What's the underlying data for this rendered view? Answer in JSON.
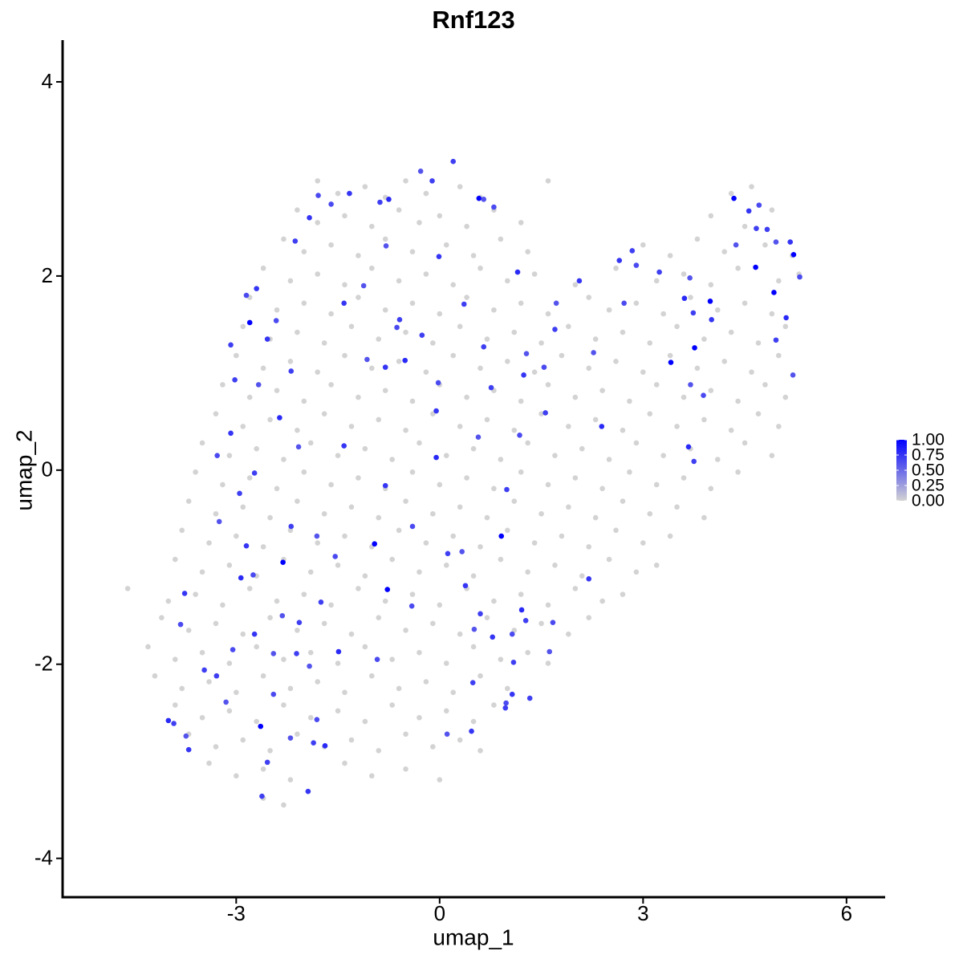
{
  "chart_data": {
    "type": "scatter",
    "title": "Rnf123",
    "xlabel": "umap_1",
    "ylabel": "umap_2",
    "xlim": [
      -5.56,
      6.57
    ],
    "ylim": [
      -4.4,
      4.43
    ],
    "xticks": [
      -3,
      0,
      3,
      6
    ],
    "yticks": [
      -4,
      -2,
      0,
      2,
      4
    ],
    "x": [
      -1.8,
      -1.5,
      -1.1,
      -0.8,
      -0.5,
      -0.2,
      0.3,
      0.6,
      1.6,
      4.3,
      4.6,
      -2.1,
      -1.8,
      -1.4,
      -1.0,
      -0.6,
      -0.3,
      0.0,
      0.4,
      0.8,
      1.2,
      4.0,
      4.5,
      4.9,
      -2.3,
      -2.0,
      -1.6,
      -1.2,
      -0.8,
      -0.4,
      0.1,
      0.5,
      0.9,
      1.3,
      3.0,
      3.4,
      3.8,
      4.2,
      4.8,
      5.2,
      -2.6,
      -2.2,
      -1.8,
      -1.4,
      -1.0,
      -0.6,
      -0.2,
      0.2,
      0.6,
      1.0,
      1.4,
      2.0,
      2.6,
      3.2,
      3.6,
      4.0,
      4.4,
      5.0,
      5.3,
      -2.8,
      -2.4,
      -2.0,
      -1.6,
      -1.2,
      -0.8,
      -0.4,
      0.0,
      0.4,
      0.8,
      1.2,
      1.6,
      2.2,
      2.5,
      2.9,
      3.3,
      3.7,
      4.1,
      4.5,
      4.9,
      -2.9,
      -2.5,
      -2.1,
      -1.7,
      -1.3,
      -0.9,
      -0.5,
      -0.1,
      0.3,
      0.7,
      1.1,
      1.5,
      1.9,
      2.3,
      2.7,
      3.1,
      3.5,
      3.9,
      4.3,
      4.7,
      5.1,
      -3.0,
      -2.6,
      -2.2,
      -1.8,
      -1.4,
      -1.0,
      -0.6,
      -0.2,
      0.2,
      0.6,
      1.0,
      1.4,
      1.8,
      2.2,
      2.6,
      3.0,
      3.4,
      3.8,
      4.2,
      4.6,
      5.0,
      -3.2,
      -2.8,
      -2.4,
      -2.0,
      -1.6,
      -1.2,
      -0.8,
      -0.4,
      0.0,
      0.4,
      0.8,
      1.2,
      1.6,
      2.0,
      2.4,
      2.8,
      3.2,
      3.6,
      4.0,
      4.4,
      4.8,
      5.1,
      -3.3,
      -2.9,
      -2.5,
      -2.1,
      -1.7,
      -1.3,
      -0.9,
      -0.5,
      -0.1,
      0.3,
      0.7,
      1.1,
      1.5,
      1.9,
      2.3,
      2.7,
      3.1,
      3.5,
      3.9,
      4.3,
      4.7,
      5.0,
      -3.5,
      -3.1,
      -2.7,
      -2.3,
      -1.9,
      -1.5,
      -1.1,
      -0.7,
      -0.3,
      0.1,
      0.5,
      0.9,
      1.3,
      1.7,
      2.1,
      2.5,
      2.9,
      3.3,
      3.7,
      4.1,
      4.5,
      4.9,
      -3.6,
      -3.2,
      -2.8,
      -2.4,
      -2.0,
      -1.6,
      -1.2,
      -0.8,
      -0.4,
      0.0,
      0.4,
      0.8,
      1.2,
      1.6,
      2.0,
      2.4,
      2.8,
      3.2,
      3.6,
      4.0,
      4.4,
      -3.7,
      -3.3,
      -2.9,
      -2.5,
      -2.1,
      -1.7,
      -1.3,
      -0.9,
      -0.5,
      -0.1,
      0.3,
      0.7,
      1.1,
      1.5,
      1.9,
      2.3,
      2.7,
      3.1,
      3.5,
      3.9,
      -3.8,
      -3.4,
      -3.0,
      -2.6,
      -2.2,
      -1.8,
      -1.4,
      -1.0,
      -0.6,
      -0.2,
      0.2,
      0.6,
      1.0,
      1.4,
      1.8,
      2.2,
      2.6,
      3.0,
      3.4,
      -3.9,
      -3.5,
      -3.1,
      -2.7,
      -2.3,
      -1.9,
      -1.5,
      -1.1,
      -0.7,
      -0.3,
      0.1,
      0.5,
      0.9,
      1.3,
      1.7,
      2.1,
      2.5,
      2.9,
      3.2,
      -4.6,
      -4.0,
      -3.6,
      -3.2,
      -2.8,
      -2.4,
      -2.0,
      -1.6,
      -1.2,
      -0.8,
      -0.4,
      0.0,
      0.4,
      0.8,
      1.2,
      1.6,
      2.0,
      2.4,
      2.7,
      -4.1,
      -3.7,
      -3.3,
      -2.9,
      -2.5,
      -2.1,
      -1.7,
      -1.3,
      -0.9,
      -0.5,
      -0.1,
      0.3,
      0.7,
      1.1,
      1.5,
      1.9,
      2.2,
      -4.3,
      -3.9,
      -3.5,
      -3.1,
      -2.7,
      -2.3,
      -1.9,
      -1.5,
      -1.1,
      -0.7,
      -0.3,
      0.1,
      0.5,
      0.9,
      1.3,
      1.6,
      -4.2,
      -3.8,
      -3.4,
      -3.0,
      -2.6,
      -2.2,
      -1.8,
      -1.4,
      -1.0,
      -0.6,
      -0.2,
      0.2,
      0.6,
      1.0,
      -3.9,
      -3.5,
      -3.1,
      -2.7,
      -2.3,
      -1.9,
      -1.5,
      -1.1,
      -0.7,
      -0.3,
      0.1,
      0.5,
      0.8,
      -3.7,
      -3.3,
      -2.9,
      -2.5,
      -2.1,
      -1.7,
      -1.3,
      -0.9,
      -0.5,
      -0.1,
      0.3,
      0.6,
      -3.4,
      -3.0,
      -2.6,
      -2.2,
      -1.4,
      -1.0,
      -0.5,
      0.0,
      -2.6,
      -2.3,
      0.58,
      -2.8,
      3.41,
      3.76,
      3.99,
      4.34,
      4.66,
      4.93,
      5.22,
      -0.96,
      0.91,
      -0.77,
      -2.31,
      -2.64,
      0.2,
      -0.28,
      -1.33,
      -1.79,
      -0.75,
      -0.11,
      0.65,
      -1.92,
      -1.6,
      -0.88,
      -2.13,
      -0.79,
      -0.01,
      0.8,
      1.15,
      0.36,
      -1.12,
      -1.41,
      -0.63,
      -0.26,
      -0.59,
      -1.07,
      -0.8,
      -0.02,
      -0.51,
      0.65,
      1.28,
      1.24,
      1.54,
      0.76,
      1.56,
      0.57,
      -0.05,
      1.18,
      2.39,
      1.7,
      1.72,
      2.06,
      2.72,
      2.84,
      3.24,
      3.69,
      4.01,
      3.89,
      3.67,
      3.75,
      4.37,
      4.56,
      4.71,
      4.67,
      4.83,
      4.96,
      5.17,
      5.31,
      5.11,
      4.96,
      5.21,
      -2.7,
      -2.85,
      -3.08,
      -3.02,
      -2.67,
      -2.54,
      -2.41,
      -2.36,
      -2.19,
      -2.08,
      -3.08,
      -3.28,
      -2.73,
      -2.95,
      -3.25,
      -2.85,
      -2.75,
      -2.93,
      -2.19,
      -1.81,
      -1.41,
      -1.54,
      -2.07,
      -1.75,
      -2.32,
      -0.8,
      -0.4,
      -0.05,
      0.12,
      0.33,
      0.38,
      -0.41,
      0.99,
      0.6,
      0.51,
      0.78,
      1.07,
      1.21,
      1.27,
      1.62,
      1.07,
      0.98,
      0.97,
      0.49,
      0.11,
      0.47,
      -0.92,
      -1.49,
      -2.11,
      -2.45,
      -2.73,
      -3.05,
      -3.47,
      -3.29,
      -3.15,
      -3.76,
      -3.82,
      -4.0,
      -3.92,
      -3.74,
      -3.7,
      -2.45,
      -2.54,
      -2.62,
      -2.2,
      -1.94,
      -1.81,
      -1.69,
      -1.86,
      -1.92,
      2.2,
      1.67,
      1.09,
      1.33,
      2.27,
      2.65,
      2.9,
      3.61,
      3.74,
      3.7
    ],
    "y": [
      2.98,
      2.85,
      2.92,
      2.81,
      2.98,
      2.85,
      2.92,
      2.81,
      2.98,
      2.85,
      2.92,
      2.68,
      2.55,
      2.62,
      2.51,
      2.68,
      2.55,
      2.62,
      2.51,
      2.68,
      2.55,
      2.62,
      2.51,
      2.68,
      2.38,
      2.25,
      2.32,
      2.21,
      2.38,
      2.25,
      2.32,
      2.21,
      2.38,
      2.25,
      2.32,
      2.21,
      2.38,
      2.25,
      2.32,
      2.21,
      2.08,
      1.95,
      2.02,
      1.91,
      2.08,
      1.95,
      2.02,
      1.91,
      2.08,
      1.95,
      2.02,
      1.91,
      2.08,
      1.95,
      2.02,
      1.91,
      2.08,
      1.95,
      2.02,
      1.78,
      1.65,
      1.72,
      1.61,
      1.78,
      1.65,
      1.72,
      1.61,
      1.78,
      1.65,
      1.72,
      1.61,
      1.78,
      1.65,
      1.72,
      1.61,
      1.78,
      1.65,
      1.72,
      1.61,
      1.48,
      1.35,
      1.42,
      1.31,
      1.48,
      1.35,
      1.42,
      1.31,
      1.48,
      1.35,
      1.42,
      1.31,
      1.48,
      1.35,
      1.42,
      1.31,
      1.48,
      1.35,
      1.42,
      1.31,
      1.48,
      1.18,
      1.05,
      1.12,
      1.01,
      1.18,
      1.05,
      1.12,
      1.01,
      1.18,
      1.05,
      1.12,
      1.01,
      1.18,
      1.05,
      1.12,
      1.01,
      1.18,
      1.05,
      1.12,
      1.01,
      1.18,
      0.88,
      0.75,
      0.82,
      0.71,
      0.88,
      0.75,
      0.82,
      0.71,
      0.88,
      0.75,
      0.82,
      0.71,
      0.88,
      0.75,
      0.82,
      0.71,
      0.88,
      0.75,
      0.82,
      0.71,
      0.88,
      0.75,
      0.58,
      0.45,
      0.52,
      0.41,
      0.58,
      0.45,
      0.52,
      0.41,
      0.58,
      0.45,
      0.52,
      0.41,
      0.58,
      0.45,
      0.52,
      0.41,
      0.58,
      0.45,
      0.52,
      0.41,
      0.58,
      0.45,
      0.28,
      0.15,
      0.22,
      0.11,
      0.28,
      0.15,
      0.22,
      0.11,
      0.28,
      0.15,
      0.22,
      0.11,
      0.28,
      0.15,
      0.22,
      0.11,
      0.28,
      0.15,
      0.22,
      0.11,
      0.28,
      0.15,
      -0.02,
      -0.15,
      -0.08,
      -0.19,
      -0.02,
      -0.15,
      -0.08,
      -0.19,
      -0.02,
      -0.15,
      -0.08,
      -0.19,
      -0.02,
      -0.15,
      -0.08,
      -0.19,
      -0.02,
      -0.15,
      -0.08,
      -0.19,
      -0.02,
      -0.32,
      -0.45,
      -0.38,
      -0.49,
      -0.32,
      -0.45,
      -0.38,
      -0.49,
      -0.32,
      -0.45,
      -0.38,
      -0.49,
      -0.32,
      -0.45,
      -0.38,
      -0.49,
      -0.32,
      -0.45,
      -0.38,
      -0.49,
      -0.62,
      -0.75,
      -0.68,
      -0.79,
      -0.62,
      -0.75,
      -0.68,
      -0.79,
      -0.62,
      -0.75,
      -0.68,
      -0.79,
      -0.62,
      -0.75,
      -0.68,
      -0.79,
      -0.62,
      -0.75,
      -0.68,
      -0.92,
      -1.05,
      -0.98,
      -1.09,
      -0.92,
      -1.05,
      -0.98,
      -1.09,
      -0.92,
      -1.05,
      -0.98,
      -1.09,
      -0.92,
      -1.05,
      -0.98,
      -1.09,
      -0.92,
      -1.05,
      -0.98,
      -1.22,
      -1.35,
      -1.28,
      -1.39,
      -1.22,
      -1.35,
      -1.28,
      -1.39,
      -1.22,
      -1.35,
      -1.28,
      -1.39,
      -1.22,
      -1.35,
      -1.28,
      -1.39,
      -1.22,
      -1.35,
      -1.28,
      -1.52,
      -1.65,
      -1.58,
      -1.69,
      -1.52,
      -1.65,
      -1.58,
      -1.69,
      -1.52,
      -1.65,
      -1.58,
      -1.69,
      -1.52,
      -1.65,
      -1.58,
      -1.69,
      -1.52,
      -1.82,
      -1.95,
      -1.88,
      -1.99,
      -1.82,
      -1.95,
      -1.88,
      -1.99,
      -1.82,
      -1.95,
      -1.88,
      -1.99,
      -1.82,
      -1.95,
      -1.88,
      -1.99,
      -2.12,
      -2.25,
      -2.18,
      -2.29,
      -2.12,
      -2.25,
      -2.18,
      -2.29,
      -2.12,
      -2.25,
      -2.18,
      -2.29,
      -2.12,
      -2.25,
      -2.42,
      -2.55,
      -2.48,
      -2.59,
      -2.42,
      -2.55,
      -2.48,
      -2.59,
      -2.42,
      -2.55,
      -2.48,
      -2.59,
      -2.42,
      -2.72,
      -2.85,
      -2.78,
      -2.89,
      -2.72,
      -2.85,
      -2.78,
      -2.89,
      -2.72,
      -2.85,
      -2.78,
      -2.89,
      -3.02,
      -3.15,
      -3.08,
      -3.19,
      -3.02,
      -3.15,
      -3.08,
      -3.19,
      -3.38,
      -3.45,
      2.8,
      1.52,
      1.11,
      1.26,
      1.74,
      2.8,
      2.09,
      1.83,
      2.22,
      -0.76,
      -0.68,
      -1.23,
      -0.95,
      -2.64,
      3.18,
      3.08,
      2.85,
      2.83,
      2.79,
      2.98,
      2.79,
      2.6,
      2.74,
      2.76,
      2.36,
      2.31,
      2.2,
      2.71,
      2.04,
      1.71,
      1.9,
      1.72,
      1.47,
      1.39,
      1.55,
      1.14,
      1.06,
      0.9,
      1.13,
      1.27,
      1.2,
      0.98,
      1.06,
      0.85,
      0.59,
      0.34,
      0.61,
      0.36,
      0.45,
      1.45,
      1.72,
      1.95,
      1.72,
      2.26,
      2.04,
      1.98,
      1.55,
      0.77,
      0.24,
      0.09,
      2.32,
      2.67,
      2.73,
      2.49,
      2.48,
      2.35,
      2.35,
      1.99,
      1.57,
      1.34,
      0.98,
      1.87,
      1.8,
      1.29,
      0.93,
      0.88,
      1.35,
      1.54,
      0.54,
      1.02,
      0.24,
      0.38,
      0.15,
      -0.03,
      -0.24,
      -0.53,
      -0.78,
      -1.08,
      -1.11,
      -0.58,
      -0.68,
      0.25,
      -0.89,
      -1.57,
      -1.36,
      -1.5,
      -0.16,
      -0.58,
      0.13,
      -0.86,
      -0.84,
      -1.19,
      -1.4,
      -0.2,
      -1.48,
      -1.64,
      -1.72,
      -1.69,
      -1.44,
      -1.55,
      -1.87,
      -2.31,
      -2.4,
      -2.45,
      -2.19,
      -2.72,
      -2.69,
      -1.95,
      -1.87,
      -1.89,
      -1.89,
      -1.69,
      -1.85,
      -2.06,
      -2.12,
      -2.39,
      -1.27,
      -1.59,
      -2.58,
      -2.61,
      -2.74,
      -2.88,
      -2.31,
      -3.01,
      -3.36,
      -2.76,
      -3.31,
      -2.57,
      -2.84,
      -2.81,
      -2.02,
      -1.12,
      -1.57,
      -1.98,
      -2.35,
      1.21,
      2.16,
      2.11,
      1.77,
      1.62,
      0.88
    ],
    "expression": [
      0,
      0,
      0,
      0,
      0,
      0,
      0,
      0,
      0,
      0,
      0,
      0,
      0,
      0,
      0,
      0,
      0,
      0,
      0,
      0,
      0,
      0,
      0,
      0,
      0,
      0,
      0,
      0,
      0,
      0,
      0,
      0,
      0,
      0,
      0,
      0,
      0,
      0,
      0,
      0,
      0,
      0,
      0,
      0,
      0,
      0,
      0,
      0,
      0,
      0,
      0,
      0,
      0,
      0,
      0,
      0,
      0,
      0,
      0,
      0,
      0,
      0,
      0,
      0,
      0,
      0,
      0,
      0,
      0,
      0,
      0,
      0,
      0,
      0,
      0,
      0,
      0,
      0,
      0,
      0,
      0,
      0,
      0,
      0,
      0,
      0,
      0,
      0,
      0,
      0,
      0,
      0,
      0,
      0,
      0,
      0,
      0,
      0,
      0,
      0,
      0,
      0,
      0,
      0,
      0,
      0,
      0,
      0,
      0,
      0,
      0,
      0,
      0,
      0,
      0,
      0,
      0,
      0,
      0,
      0,
      0,
      0,
      0,
      0,
      0,
      0,
      0,
      0,
      0,
      0,
      0,
      0,
      0,
      0,
      0,
      0,
      0,
      0,
      0,
      0,
      0,
      0,
      0,
      0,
      0,
      0,
      0,
      0,
      0,
      0,
      0,
      0,
      0,
      0,
      0,
      0,
      0,
      0,
      0,
      0,
      0,
      0,
      0,
      0,
      0,
      0,
      0,
      0,
      0,
      0,
      0,
      0,
      0,
      0,
      0,
      0,
      0,
      0,
      0,
      0,
      0,
      0,
      0,
      0,
      0,
      0,
      0,
      0,
      0,
      0,
      0,
      0,
      0,
      0,
      0,
      0,
      0,
      0,
      0,
      0,
      0,
      0,
      0,
      0,
      0,
      0,
      0,
      0,
      0,
      0,
      0,
      0,
      0,
      0,
      0,
      0,
      0,
      0,
      0,
      0,
      0,
      0,
      0,
      0,
      0,
      0,
      0,
      0,
      0,
      0,
      0,
      0,
      0,
      0,
      0,
      0,
      0,
      0,
      0,
      0,
      0,
      0,
      0,
      0,
      0,
      0,
      0,
      0,
      0,
      0,
      0,
      0,
      0,
      0,
      0,
      0,
      0,
      0,
      0,
      0,
      0,
      0,
      0,
      0,
      0,
      0,
      0,
      0,
      0,
      0,
      0,
      0,
      0,
      0,
      0,
      0,
      0,
      0,
      0,
      0,
      0,
      0,
      0,
      0,
      0,
      0,
      0,
      0,
      0,
      0,
      0,
      0,
      0,
      0,
      0,
      0,
      0,
      0,
      0,
      0,
      0,
      0,
      0,
      0,
      0,
      0,
      0,
      0,
      0,
      0,
      0,
      0,
      0,
      0,
      0,
      0,
      0,
      0,
      0,
      0,
      0,
      0,
      0,
      0,
      0,
      0,
      0,
      0,
      0,
      0,
      0,
      0,
      0,
      0,
      0,
      0,
      0,
      0,
      0,
      0,
      0,
      0,
      0,
      0,
      0,
      0,
      0,
      0,
      0,
      0,
      0,
      0,
      0,
      0,
      0,
      0,
      0,
      0,
      0,
      0,
      0,
      0,
      0,
      0,
      0,
      0,
      0,
      1,
      1,
      1,
      1,
      1,
      1,
      1,
      1,
      1,
      1,
      1,
      1,
      1,
      1,
      0.7,
      0.6,
      0.75,
      0.65,
      0.8,
      0.7,
      0.6,
      0.75,
      0.65,
      0.7,
      0.7,
      0.6,
      0.75,
      0.65,
      0.8,
      0.7,
      0.6,
      0.75,
      0.65,
      0.7,
      0.7,
      0.6,
      0.75,
      0.65,
      0.8,
      0.7,
      0.6,
      0.75,
      0.65,
      0.7,
      0.7,
      0.6,
      0.75,
      0.65,
      0.8,
      0.7,
      0.6,
      0.75,
      0.65,
      0.7,
      0.7,
      0.6,
      0.75,
      0.65,
      0.8,
      0.7,
      0.6,
      0.75,
      0.65,
      0.7,
      0.7,
      0.6,
      0.75,
      0.65,
      0.8,
      0.7,
      0.6,
      0.75,
      0.65,
      0.7,
      0.7,
      0.6,
      0.75,
      0.65,
      0.8,
      0.7,
      0.6,
      0.75,
      0.65,
      0.7,
      0.7,
      0.6,
      0.75,
      0.65,
      0.8,
      0.7,
      0.6,
      0.75,
      0.65,
      0.7,
      0.7,
      0.6,
      0.75,
      0.65,
      0.8,
      0.7,
      0.6,
      0.75,
      0.65,
      0.7,
      0.7,
      0.6,
      0.75,
      0.65,
      0.8,
      0.7,
      0.6,
      0.75,
      0.65,
      0.7,
      0.7,
      0.6,
      0.75,
      0.65,
      0.8,
      0.7,
      0.6,
      0.75,
      0.65,
      0.7,
      0.7,
      0.6,
      0.75,
      0.65,
      0.8,
      0.7,
      0.6,
      0.75,
      0.65,
      0.7,
      0.7,
      0.6,
      0.75,
      0.65,
      0.8,
      0.7,
      0.6,
      0.75,
      0.65,
      0.7,
      0.7,
      0.6,
      0.75,
      0.65,
      0.8,
      0.7,
      0.6
    ],
    "colorbar": {
      "low_color": "#d3d3d3",
      "high_color": "#0000ff",
      "lim": [
        0,
        1
      ],
      "ticks": [
        {
          "value": 0,
          "label": "0.00"
        },
        {
          "value": 0.25,
          "label": "0.25"
        },
        {
          "value": 0.5,
          "label": "0.50"
        },
        {
          "value": 0.75,
          "label": "0.75"
        },
        {
          "value": 1,
          "label": "1.00"
        }
      ]
    }
  }
}
